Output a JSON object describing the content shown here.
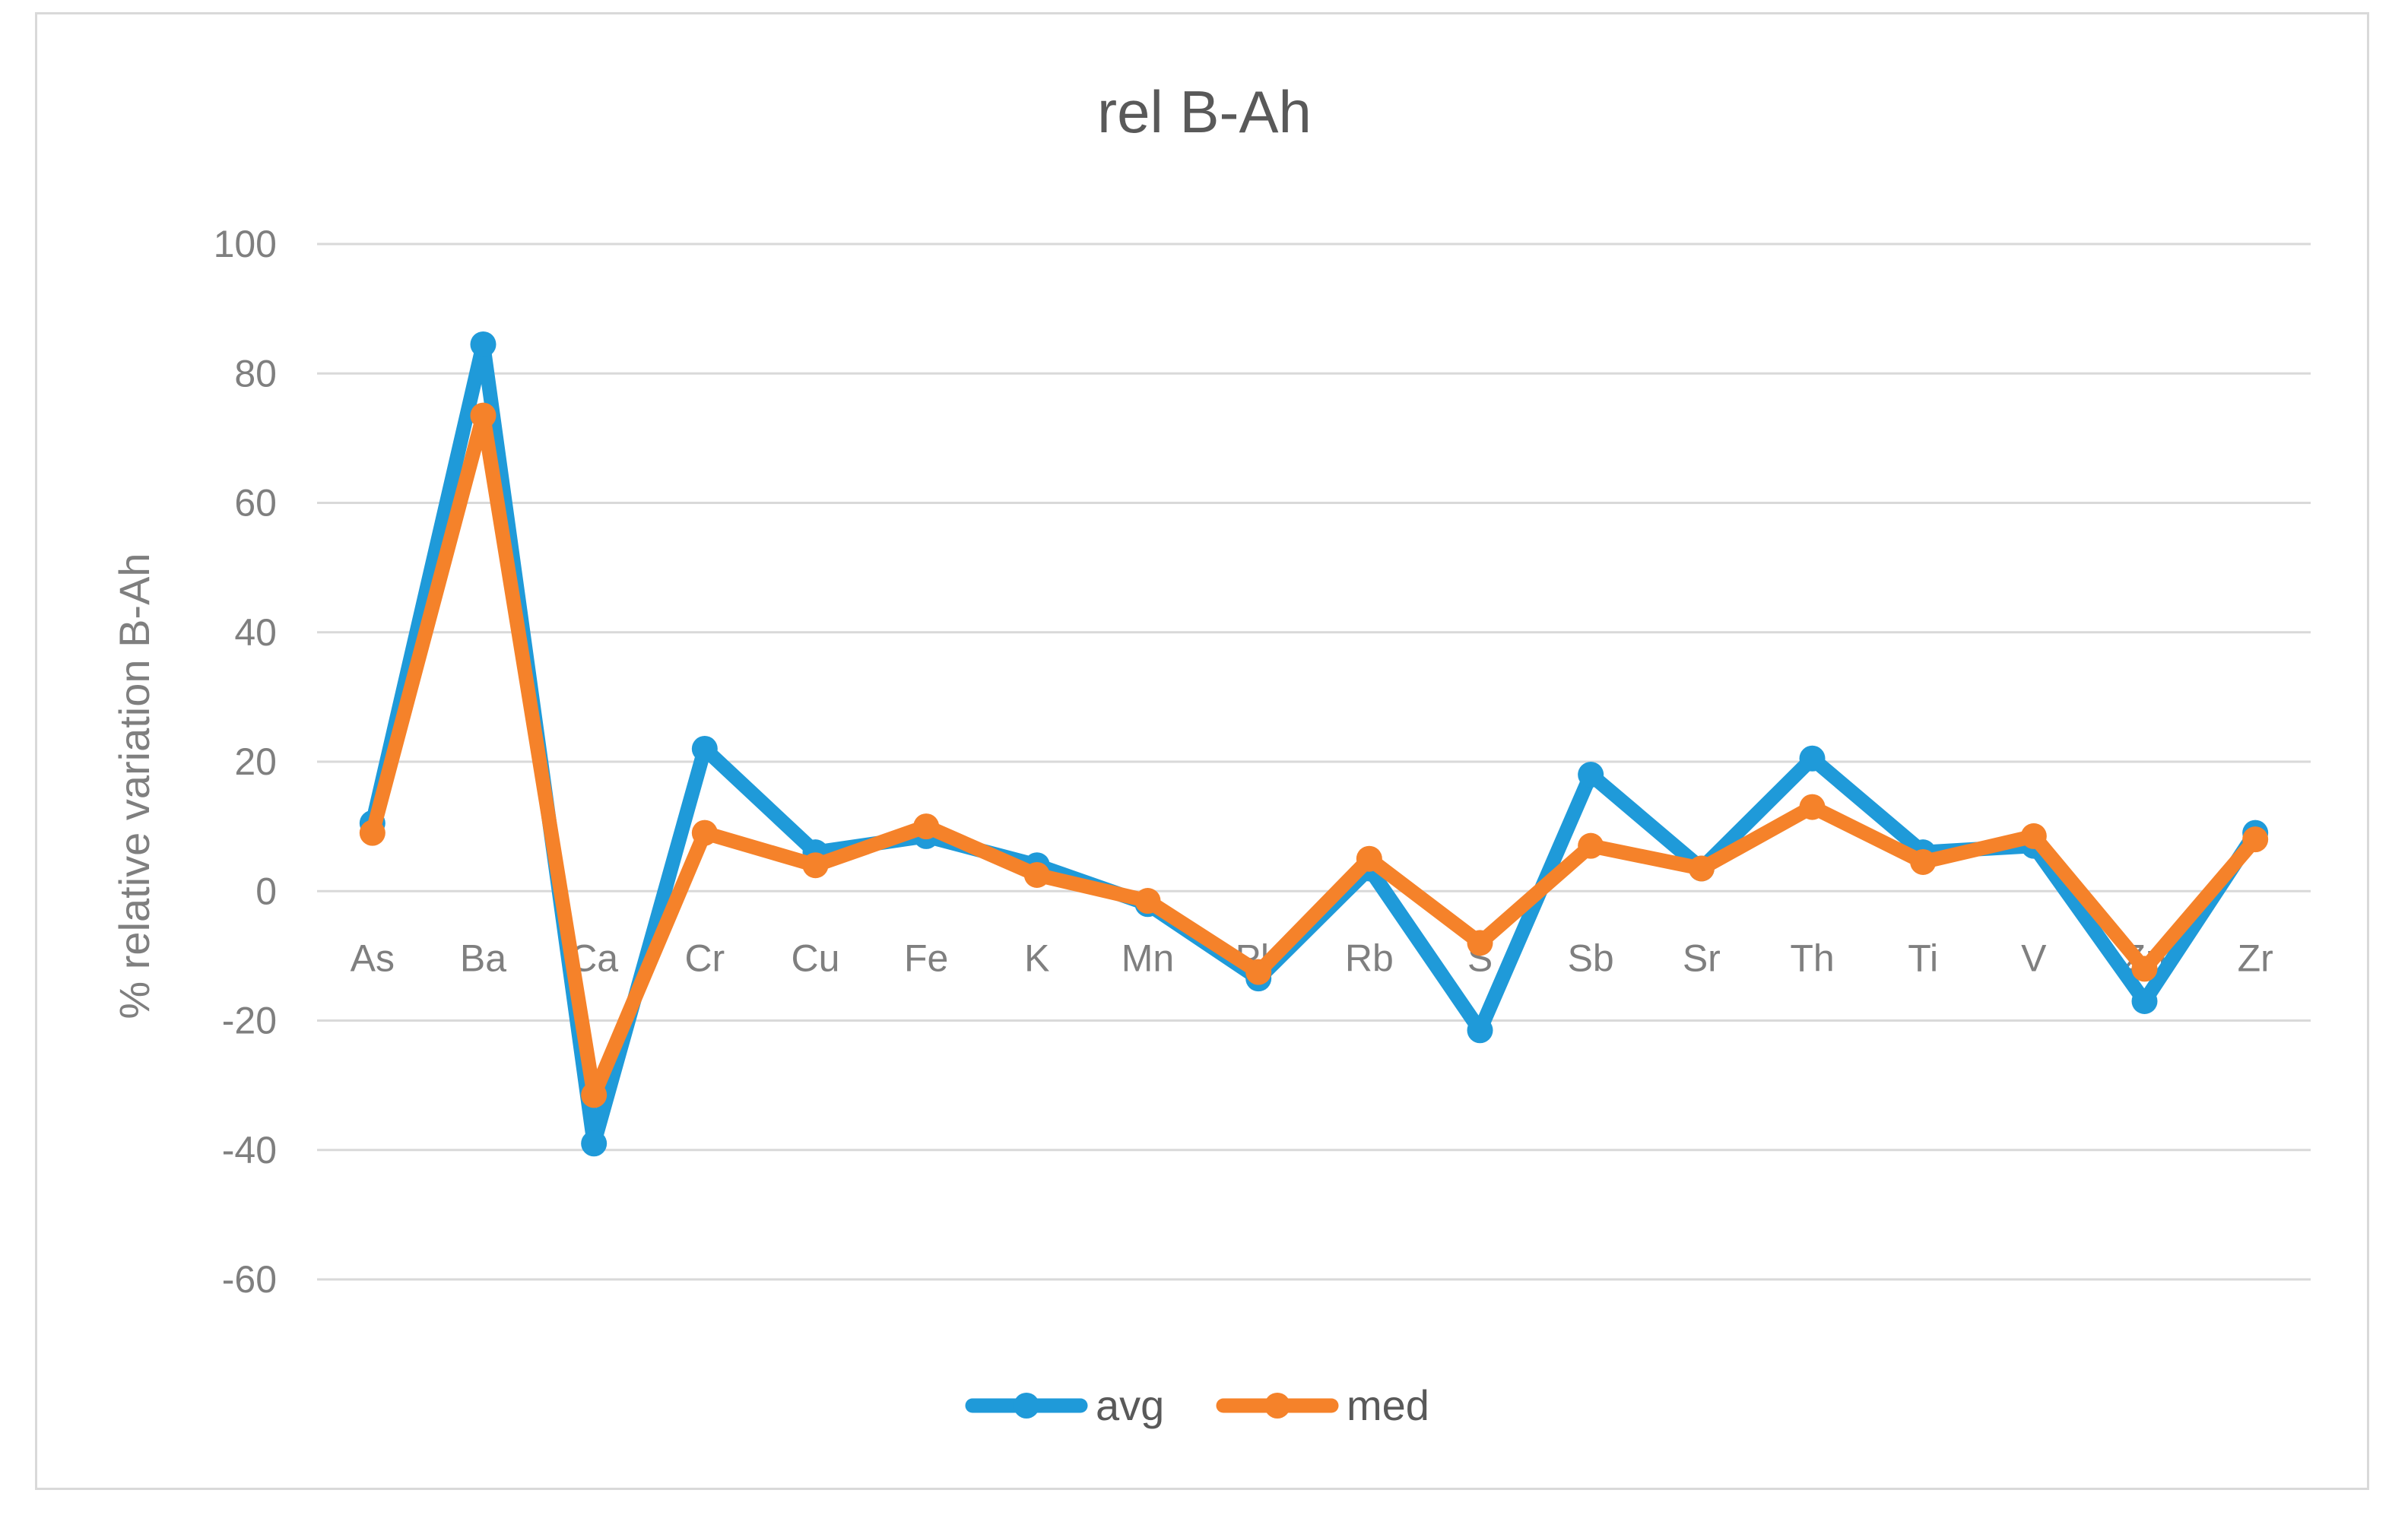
{
  "chart_data": {
    "type": "line",
    "title": "rel B-Ah",
    "xlabel": "",
    "ylabel": "% relative variation B-Ah",
    "ylim": [
      -60,
      100
    ],
    "yticks": [
      100,
      80,
      60,
      40,
      20,
      0,
      -20,
      -40,
      -60
    ],
    "grid": true,
    "legend_position": "bottom",
    "categories": [
      "As",
      "Ba",
      "Ca",
      "Cr",
      "Cu",
      "Fe",
      "K",
      "Mn",
      "Pb",
      "Rb",
      "S",
      "Sb",
      "Sr",
      "Th",
      "Ti",
      "V",
      "Zn",
      "Zr"
    ],
    "series": [
      {
        "name": "avg",
        "color": "#1f9ad9",
        "values": [
          10.5,
          84.5,
          -39,
          22,
          6,
          8.5,
          4,
          -2,
          -13.5,
          3.5,
          -21.5,
          18,
          3.5,
          20.5,
          6,
          7,
          -17,
          9
        ]
      },
      {
        "name": "med",
        "color": "#f5822a",
        "values": [
          9,
          73.5,
          -31.5,
          9,
          4,
          10,
          2.5,
          -1.5,
          -12.5,
          5,
          -8,
          7,
          3.5,
          13,
          4.5,
          8.5,
          -12,
          8
        ]
      }
    ]
  }
}
